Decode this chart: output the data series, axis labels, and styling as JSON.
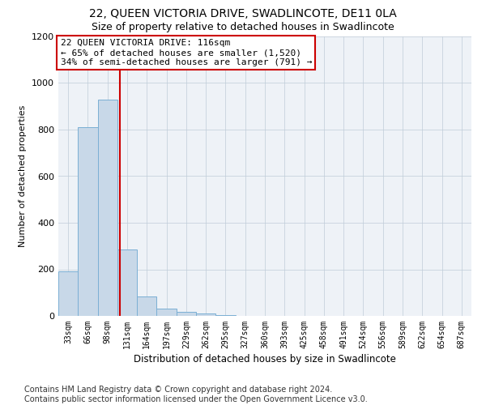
{
  "title1": "22, QUEEN VICTORIA DRIVE, SWADLINCOTE, DE11 0LA",
  "title2": "Size of property relative to detached houses in Swadlincote",
  "xlabel": "Distribution of detached houses by size in Swadlincote",
  "ylabel": "Number of detached properties",
  "bin_labels": [
    "33sqm",
    "66sqm",
    "98sqm",
    "131sqm",
    "164sqm",
    "197sqm",
    "229sqm",
    "262sqm",
    "295sqm",
    "327sqm",
    "360sqm",
    "393sqm",
    "425sqm",
    "458sqm",
    "491sqm",
    "524sqm",
    "556sqm",
    "589sqm",
    "622sqm",
    "654sqm",
    "687sqm"
  ],
  "bar_heights": [
    190,
    810,
    930,
    285,
    85,
    32,
    18,
    10,
    3,
    0,
    0,
    0,
    0,
    0,
    0,
    0,
    0,
    0,
    0,
    0,
    0
  ],
  "bar_color": "#c8d8e8",
  "bar_edge_color": "#7bafd4",
  "vline_x": 2.62,
  "vline_color": "#cc0000",
  "annotation_text": "22 QUEEN VICTORIA DRIVE: 116sqm\n← 65% of detached houses are smaller (1,520)\n34% of semi-detached houses are larger (791) →",
  "annotation_box_color": "#ffffff",
  "annotation_box_edge_color": "#cc0000",
  "ylim": [
    0,
    1200
  ],
  "yticks": [
    0,
    200,
    400,
    600,
    800,
    1000,
    1200
  ],
  "footer": "Contains HM Land Registry data © Crown copyright and database right 2024.\nContains public sector information licensed under the Open Government Licence v3.0.",
  "plot_bg_color": "#eef2f7",
  "title1_fontsize": 10,
  "title2_fontsize": 9,
  "annotation_fontsize": 8,
  "footer_fontsize": 7
}
